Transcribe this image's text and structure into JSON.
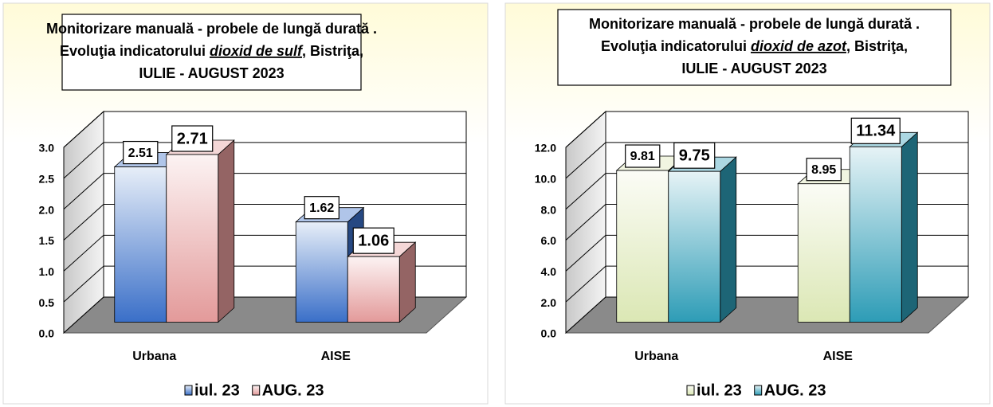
{
  "chart_data": [
    {
      "type": "bar3d",
      "title": {
        "line1": "Monitorizare manuală - probele de lungă durată .",
        "line2_prefix": "Evoluţia indicatorului",
        "pollutant": "dioxid de sulf",
        "line2_suffix": ", Bistriţa,",
        "line3": "IULIE - AUGUST 2023"
      },
      "categories": [
        "Urbana",
        "AISE"
      ],
      "series": [
        {
          "name": "iul. 23",
          "color": "#3a6fc8",
          "values": [
            2.51,
            1.62
          ]
        },
        {
          "name": "AUG. 23",
          "color": "#e39a9a",
          "values": [
            2.71,
            1.06
          ]
        }
      ],
      "ylim": [
        0,
        3
      ],
      "yticks": [
        {
          "value": 0,
          "label": "0.0"
        },
        {
          "value": 0.5,
          "label": "0.5"
        },
        {
          "value": 1,
          "label": "1.0"
        },
        {
          "value": 1.5,
          "label": "1.5"
        },
        {
          "value": 2,
          "label": "2.0"
        },
        {
          "value": 2.5,
          "label": "2.5"
        },
        {
          "value": 3,
          "label": "3.0"
        }
      ],
      "grid": true,
      "legend": "bottom"
    },
    {
      "type": "bar3d",
      "title": {
        "line1": "Monitorizare manuală - probele de lungă durată .",
        "line2_prefix": "Evoluţia indicatorului",
        "pollutant": "dioxid de azot",
        "line2_suffix": ", Bistriţa,",
        "line3": "IULIE - AUGUST 2023"
      },
      "categories": [
        "Urbana",
        "AISE"
      ],
      "series": [
        {
          "name": "iul. 23",
          "color": "#dbe7b4",
          "values": [
            9.81,
            8.95
          ]
        },
        {
          "name": "AUG. 23",
          "color": "#2d9cb6",
          "values": [
            9.75,
            11.34
          ]
        }
      ],
      "ylim": [
        0,
        12
      ],
      "yticks": [
        {
          "value": 0,
          "label": "0.0"
        },
        {
          "value": 2,
          "label": "2.0"
        },
        {
          "value": 4,
          "label": "4.0"
        },
        {
          "value": 6,
          "label": "6.0"
        },
        {
          "value": 8,
          "label": "8.0"
        },
        {
          "value": 10,
          "label": "10.0"
        },
        {
          "value": 12,
          "label": "12.0"
        }
      ],
      "grid": true,
      "legend": "bottom"
    }
  ]
}
